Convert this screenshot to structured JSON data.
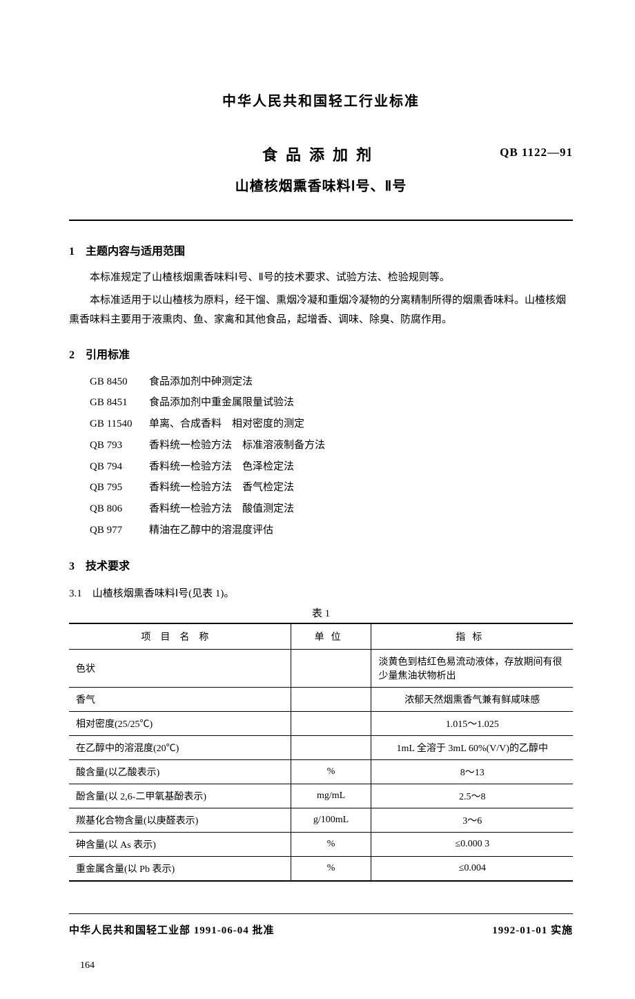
{
  "header": {
    "org_standard": "中华人民共和国轻工行业标准",
    "title_main": "食品添加剂",
    "title_sub": "山楂核烟熏香味料Ⅰ号、Ⅱ号",
    "code": "QB 1122—91"
  },
  "sections": {
    "s1": {
      "heading": "1　主题内容与适用范围",
      "p1": "本标准规定了山楂核烟熏香味料Ⅰ号、Ⅱ号的技术要求、试验方法、检验规则等。",
      "p2": "本标准适用于以山楂核为原料，经干馏、熏烟冷凝和重烟冷凝物的分离精制所得的烟熏香味料。山楂核烟熏香味料主要用于液熏肉、鱼、家禽和其他食品，起增香、调味、除臭、防腐作用。"
    },
    "s2": {
      "heading": "2　引用标准",
      "refs": [
        {
          "code": "GB 8450",
          "title": "食品添加剂中砷测定法"
        },
        {
          "code": "GB 8451",
          "title": "食品添加剂中重金属限量试验法"
        },
        {
          "code": "GB 11540",
          "title": "单离、合成香料　相对密度的测定"
        },
        {
          "code": "QB 793",
          "title": "香料统一检验方法　标准溶液制备方法"
        },
        {
          "code": "QB 794",
          "title": "香料统一检验方法　色泽检定法"
        },
        {
          "code": "QB 795",
          "title": "香料统一检验方法　香气检定法"
        },
        {
          "code": "QB 806",
          "title": "香料统一检验方法　酸值测定法"
        },
        {
          "code": "QB 977",
          "title": "精油在乙醇中的溶混度评估"
        }
      ]
    },
    "s3": {
      "heading": "3　技术要求",
      "sub31": "3.1　山楂核烟熏香味料Ⅰ号(见表 1)。"
    }
  },
  "table1": {
    "caption": "表 1",
    "columns": [
      "项目名称",
      "单位",
      "指标"
    ],
    "col_widths": [
      "44%",
      "16%",
      "40%"
    ],
    "rows": [
      {
        "name": "色状",
        "unit": "",
        "spec": "淡黄色到桔红色易流动液体，存放期间有很少量焦油状物析出"
      },
      {
        "name": "香气",
        "unit": "",
        "spec": "浓郁天然烟熏香气兼有鲜咸味感"
      },
      {
        "name": "相对密度(25/25℃)",
        "unit": "",
        "spec": "1.015～1.025"
      },
      {
        "name": "在乙醇中的溶混度(20℃)",
        "unit": "",
        "spec": "1mL 全溶于 3mL 60%(V/V)的乙醇中"
      },
      {
        "name": "酸含量(以乙酸表示)",
        "unit": "%",
        "spec": "8～13"
      },
      {
        "name": "酚含量(以 2,6-二甲氧基酚表示)",
        "unit": "mg/mL",
        "spec": "2.5～8"
      },
      {
        "name": "羰基化合物含量(以庚醛表示)",
        "unit": "g/100mL",
        "spec": "3～6"
      },
      {
        "name": "砷含量(以 As 表示)",
        "unit": "%",
        "spec": "≤0.000 3"
      },
      {
        "name": "重金属含量(以 Pb 表示)",
        "unit": "%",
        "spec": "≤0.004"
      }
    ]
  },
  "footer": {
    "approve": "中华人民共和国轻工业部 1991-06-04 批准",
    "effective": "1992-01-01 实施",
    "page": "164"
  }
}
